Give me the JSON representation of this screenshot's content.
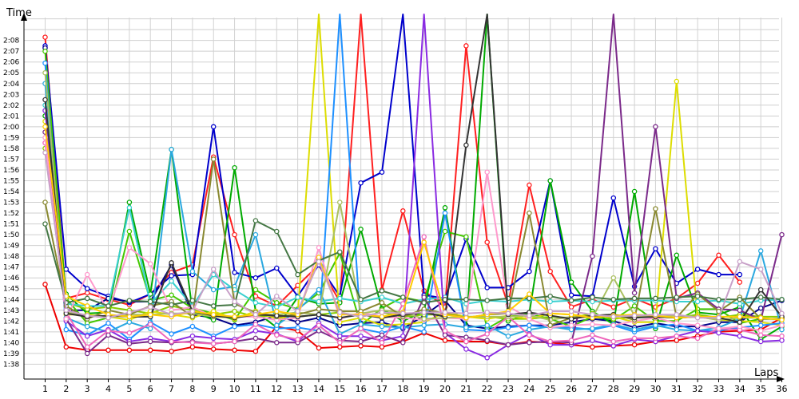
{
  "chart_data": {
    "type": "line",
    "title": "",
    "xlabel": "Laps",
    "ylabel": "Time",
    "grid": true,
    "legend": "none",
    "x": [
      1,
      2,
      3,
      4,
      5,
      6,
      7,
      8,
      9,
      10,
      11,
      12,
      13,
      14,
      15,
      16,
      17,
      18,
      19,
      20,
      21,
      22,
      23,
      24,
      25,
      26,
      27,
      28,
      29,
      30,
      31,
      32,
      33,
      34,
      35,
      36
    ],
    "xlim": [
      0,
      36.7
    ],
    "ylim": [
      97,
      130
    ],
    "yticks": [
      {
        "v": 98,
        "l": "1:38"
      },
      {
        "v": 99,
        "l": "1:39"
      },
      {
        "v": 100,
        "l": "1:40"
      },
      {
        "v": 101,
        "l": "1:41"
      },
      {
        "v": 102,
        "l": "1:42"
      },
      {
        "v": 103,
        "l": "1:43"
      },
      {
        "v": 104,
        "l": "1:44"
      },
      {
        "v": 105,
        "l": "1:45"
      },
      {
        "v": 106,
        "l": "1:46"
      },
      {
        "v": 107,
        "l": "1:47"
      },
      {
        "v": 108,
        "l": "1:48"
      },
      {
        "v": 109,
        "l": "1:49"
      },
      {
        "v": 110,
        "l": "1:50"
      },
      {
        "v": 111,
        "l": "1:51"
      },
      {
        "v": 112,
        "l": "1:52"
      },
      {
        "v": 113,
        "l": "1:53"
      },
      {
        "v": 114,
        "l": "1:54"
      },
      {
        "v": 115,
        "l": "1:55"
      },
      {
        "v": 116,
        "l": "1:56"
      },
      {
        "v": 117,
        "l": "1:57"
      },
      {
        "v": 118,
        "l": "1:58"
      },
      {
        "v": 119,
        "l": "1:59"
      },
      {
        "v": 120,
        "l": "2:00"
      },
      {
        "v": 121,
        "l": "2:01"
      },
      {
        "v": 122,
        "l": "2:02"
      },
      {
        "v": 123,
        "l": "2:03"
      },
      {
        "v": 124,
        "l": "2:04"
      },
      {
        "v": 125,
        "l": "2:05"
      },
      {
        "v": 126,
        "l": "2:06"
      },
      {
        "v": 127,
        "l": "2:07"
      },
      {
        "v": 128,
        "l": "2:08"
      }
    ],
    "series": [
      {
        "color": "#ee0000",
        "values": [
          105.4,
          99.6,
          99.3,
          99.3,
          99.3,
          99.3,
          99.2,
          99.6,
          99.4,
          99.3,
          99.2,
          101.5,
          101.1,
          99.5,
          99.6,
          99.7,
          99.6,
          100.1,
          100.9,
          100.2,
          100.1,
          100.1,
          99.8,
          100.1,
          100.0,
          99.8,
          99.6,
          99.7,
          99.8,
          100.1,
          100.2,
          100.6,
          101.0,
          101.1,
          101.2,
          102.3
        ]
      },
      {
        "color": "#ff2020",
        "values": [
          128.3,
          104.1,
          104.6,
          104.0,
          103.5,
          104.5,
          106.5,
          107.2,
          117.2,
          110.0,
          104.3,
          103.4,
          105.3,
          107.2,
          103.8,
          135.0,
          104.9,
          112.2,
          104.8,
          103.3,
          127.5,
          109.3,
          103.5,
          114.6,
          106.6,
          103.3,
          104.0,
          103.3,
          104.1,
          103.3,
          104.1,
          105.5,
          108.1,
          105.6,
          null,
          null
        ]
      },
      {
        "color": "#0000cc",
        "values": [
          127.5,
          106.8,
          105.0,
          104.3,
          103.7,
          104.5,
          106.2,
          106.3,
          120.0,
          106.5,
          106.0,
          106.9,
          104.3,
          107.2,
          104.3,
          114.8,
          115.8,
          135.0,
          104.4,
          104.1,
          109.6,
          105.1,
          105.1,
          106.6,
          115.0,
          104.4,
          104.3,
          113.4,
          105.2,
          108.7,
          105.5,
          106.8,
          106.3,
          106.3,
          null,
          null
        ]
      },
      {
        "color": "#000088",
        "values": [
          127.3,
          103.0,
          103.0,
          104.1,
          103.8,
          103.8,
          107.2,
          102.6,
          102.3,
          101.6,
          101.9,
          102.5,
          101.9,
          102.3,
          101.6,
          101.8,
          101.9,
          101.3,
          102.5,
          103.9,
          101.6,
          101.3,
          101.5,
          101.6,
          101.6,
          101.9,
          102.2,
          102.0,
          101.4,
          101.8,
          101.5,
          101.5,
          101.9,
          101.9,
          103.2,
          103.9
        ]
      },
      {
        "color": "#44c800",
        "values": [
          127.0,
          104.1,
          101.8,
          102.3,
          110.3,
          103.9,
          104.4,
          103.2,
          102.7,
          102.1,
          104.9,
          103.7,
          103.1,
          104.6,
          108.3,
          101.6,
          103.2,
          104.2,
          103.8,
          110.3,
          109.8,
          101.3,
          102.4,
          102.7,
          102.2,
          101.5,
          102.4,
          102.1,
          103.4,
          102.0,
          102.0,
          103.1,
          103.1,
          101.8,
          102.2,
          102.2
        ]
      },
      {
        "color": "#00aa00",
        "values": [
          121.0,
          104.5,
          102.7,
          102.8,
          113.0,
          104.5,
          117.9,
          102.9,
          102.1,
          116.2,
          102.9,
          101.4,
          104.2,
          103.6,
          103.7,
          110.5,
          103.1,
          102.0,
          102.9,
          112.5,
          101.3,
          135.0,
          102.0,
          102.7,
          115.0,
          105.6,
          102.9,
          101.7,
          114.0,
          101.3,
          108.1,
          102.8,
          102.6,
          103.3,
          100.3,
          101.5
        ]
      },
      {
        "color": "#88cc00",
        "values": [
          118.0,
          103.7,
          103.1,
          103.3,
          103.0,
          102.7,
          103.4,
          103.0,
          102.6,
          102.9,
          102.4,
          102.5,
          102.4,
          102.6,
          102.8,
          102.4,
          102.8,
          102.4,
          102.6,
          102.6,
          102.4,
          102.4,
          102.2,
          102.2,
          102.4,
          102.3,
          102.7,
          102.2,
          102.4,
          102.4,
          102.3,
          102.6,
          102.3,
          102.6,
          102.4,
          102.4
        ]
      },
      {
        "color": "#dddd00",
        "values": [
          120.5,
          102.6,
          102.6,
          102.4,
          102.1,
          102.9,
          102.6,
          102.3,
          102.9,
          102.2,
          102.9,
          102.2,
          102.6,
          135.0,
          101.9,
          102.3,
          101.6,
          101.7,
          101.9,
          102.8,
          102.4,
          102.2,
          102.5,
          102.2,
          102.7,
          102.6,
          102.4,
          102.4,
          101.9,
          101.9,
          124.2,
          102.4,
          102.1,
          102.0,
          101.9,
          101.6
        ]
      },
      {
        "color": "#1e90ff",
        "values": [
          125.9,
          101.2,
          100.7,
          101.8,
          100.3,
          101.9,
          100.8,
          101.5,
          100.6,
          101.5,
          101.7,
          101.3,
          101.4,
          101.1,
          135.0,
          101.3,
          100.9,
          101.5,
          101.0,
          112.0,
          101.2,
          101.1,
          101.4,
          101.6,
          101.4,
          101.4,
          101.2,
          101.6,
          101.0,
          101.5,
          101.7,
          101.1,
          101.1,
          101.4,
          101.6,
          101.8
        ]
      },
      {
        "color": "#2aa8e0",
        "values": [
          124.0,
          102.3,
          101.5,
          101.0,
          101.9,
          101.3,
          117.9,
          106.6,
          104.9,
          105.2,
          110.0,
          101.6,
          103.0,
          104.9,
          100.8,
          101.7,
          101.5,
          101.4,
          101.6,
          101.7,
          101.4,
          101.6,
          100.6,
          101.2,
          101.5,
          101.2,
          101.3,
          101.7,
          101.2,
          101.6,
          101.2,
          101.1,
          101.4,
          102.2,
          108.5,
          101.2
        ]
      },
      {
        "color": "#3ad0d0",
        "values": [
          122.0,
          103.6,
          103.4,
          103.4,
          112.5,
          103.6,
          105.7,
          103.4,
          106.3,
          104.9,
          103.7,
          103.3,
          104.2,
          103.8,
          104.1,
          103.8,
          104.2,
          103.6,
          104.0,
          104.2,
          103.6,
          103.9,
          103.8,
          104.0,
          103.8,
          103.9,
          103.8,
          103.9,
          103.9,
          103.9,
          103.8,
          103.8,
          103.9,
          103.6,
          103.9,
          104.0
        ]
      },
      {
        "color": "#8a2be2",
        "values": [
          121.5,
          102.0,
          100.6,
          101.2,
          100.1,
          100.4,
          100.1,
          100.6,
          100.4,
          100.3,
          101.1,
          100.8,
          100.1,
          101.8,
          100.6,
          100.6,
          100.2,
          100.6,
          135.0,
          100.9,
          99.4,
          98.6,
          99.8,
          100.8,
          99.8,
          99.8,
          100.2,
          99.7,
          100.3,
          100.1,
          100.6,
          101.1,
          100.9,
          100.6,
          100.1,
          100.2
        ]
      },
      {
        "color": "#7b2a8a",
        "values": [
          119.5,
          102.2,
          99.0,
          100.7,
          99.9,
          100.1,
          100.0,
          100.1,
          99.9,
          100.1,
          100.4,
          100.0,
          100.0,
          101.1,
          100.2,
          100.1,
          100.7,
          100.0,
          104.2,
          100.7,
          100.5,
          100.2,
          99.8,
          100.0,
          100.1,
          100.0,
          108.0,
          135.0,
          104.6,
          120.0,
          104.1,
          104.6,
          103.1,
          103.0,
          102.1,
          110.0
        ]
      },
      {
        "color": "#ee66bb",
        "values": [
          118.5,
          102.8,
          99.6,
          101.1,
          100.9,
          101.7,
          100.1,
          100.0,
          99.9,
          100.1,
          101.7,
          100.7,
          100.3,
          101.6,
          100.0,
          101.3,
          100.0,
          103.6,
          109.8,
          101.1,
          100.1,
          100.8,
          102.4,
          100.7,
          100.1,
          100.2,
          100.7,
          100.1,
          100.4,
          100.4,
          100.6,
          100.4,
          101.3,
          101.2,
          100.7,
          100.6
        ]
      },
      {
        "color": "#ff99cc",
        "values": [
          119.0,
          102.2,
          106.3,
          102.9,
          108.8,
          107.3,
          103.0,
          103.3,
          102.4,
          102.4,
          102.4,
          102.1,
          102.3,
          108.8,
          102.2,
          102.8,
          102.4,
          102.3,
          102.1,
          102.3,
          102.2,
          115.8,
          103.4,
          102.2,
          101.4,
          101.6,
          101.7,
          101.6,
          102.0,
          102.3,
          101.8,
          101.6,
          101.3,
          101.5,
          101.1,
          101.6
        ]
      },
      {
        "color": "#aac060",
        "values": [
          125.0,
          102.8,
          102.5,
          102.3,
          102.6,
          102.6,
          102.7,
          102.7,
          102.4,
          102.3,
          102.6,
          102.6,
          102.8,
          102.6,
          113.0,
          102.7,
          103.0,
          102.8,
          102.2,
          102.3,
          102.4,
          102.4,
          102.4,
          102.5,
          102.1,
          102.4,
          102.3,
          106.0,
          102.5,
          102.4,
          102.5,
          102.4,
          102.1,
          102.3,
          102.3,
          102.1
        ]
      },
      {
        "color": "#888830",
        "values": [
          113.0,
          103.4,
          102.2,
          103.0,
          102.6,
          103.4,
          103.8,
          102.4,
          117.0,
          103.6,
          102.8,
          102.4,
          102.6,
          103.1,
          102.9,
          102.9,
          103.7,
          102.4,
          103.1,
          102.7,
          102.3,
          102.6,
          102.7,
          112.0,
          101.6,
          102.3,
          102.5,
          102.6,
          102.1,
          112.4,
          102.3,
          104.5,
          102.9,
          104.2,
          102.2,
          102.2
        ]
      },
      {
        "color": "#447744",
        "values": [
          111.0,
          103.7,
          104.1,
          103.4,
          103.9,
          103.8,
          103.5,
          103.9,
          103.4,
          103.5,
          111.3,
          110.3,
          106.3,
          107.6,
          108.4,
          104.0,
          104.8,
          104.2,
          103.7,
          104.0,
          104.0,
          103.9,
          104.1,
          104.1,
          104.3,
          103.9,
          104.2,
          104.0,
          104.1,
          104.1,
          104.2,
          104.3,
          104.0,
          104.0,
          104.2,
          104.0
        ]
      },
      {
        "color": "#333333",
        "values": [
          122.5,
          102.7,
          102.4,
          102.5,
          102.4,
          102.4,
          107.4,
          102.9,
          102.5,
          102.3,
          102.6,
          102.5,
          102.4,
          102.6,
          102.3,
          102.6,
          102.3,
          102.6,
          102.8,
          102.4,
          118.3,
          135.0,
          102.6,
          102.8,
          102.5,
          102.2,
          102.5,
          102.6,
          102.3,
          102.4,
          102.3,
          102.4,
          102.3,
          101.9,
          104.9,
          102.4
        ]
      },
      {
        "color": "#ffcc00",
        "values": [
          120.0,
          104.3,
          103.4,
          102.6,
          102.4,
          102.6,
          102.4,
          102.9,
          102.6,
          102.4,
          102.6,
          102.9,
          102.6,
          107.9,
          102.6,
          102.6,
          102.4,
          102.8,
          109.3,
          102.6,
          102.3,
          102.6,
          102.9,
          104.5,
          102.7,
          102.6,
          102.3,
          102.5,
          102.6,
          102.5,
          102.3,
          102.4,
          102.4,
          102.4,
          102.3,
          102.1
        ]
      },
      {
        "color": "#c8a0c8",
        "values": [
          117.6,
          103.0,
          102.5,
          102.3,
          102.8,
          103.3,
          102.6,
          102.9,
          106.8,
          103.8,
          102.6,
          104.3,
          102.9,
          107.5,
          102.8,
          102.4,
          102.8,
          102.7,
          102.8,
          102.8,
          102.7,
          102.8,
          102.7,
          102.5,
          102.9,
          102.9,
          102.6,
          102.4,
          102.5,
          102.6,
          102.6,
          102.3,
          102.3,
          107.5,
          106.8,
          102.7
        ]
      }
    ]
  }
}
